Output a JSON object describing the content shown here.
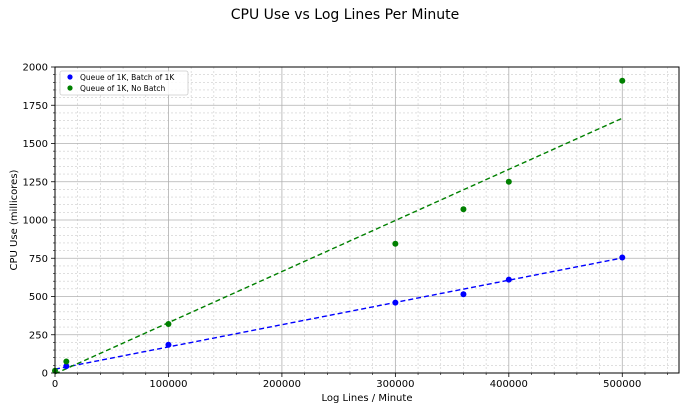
{
  "chart_data": {
    "type": "scatter",
    "title": "CPU Use vs Log Lines Per Minute",
    "xlabel": "Log Lines / Minute",
    "ylabel": "CPU Use (millicores)",
    "xlim": [
      0,
      550000
    ],
    "ylim": [
      0,
      2000
    ],
    "xticks": [
      0,
      100000,
      200000,
      300000,
      400000,
      500000
    ],
    "yticks": [
      0,
      250,
      500,
      750,
      1000,
      1250,
      1500,
      1750,
      2000
    ],
    "grid": true,
    "minor_grid": true,
    "legend_position": "top-left",
    "series": [
      {
        "name": "Queue of 1K, Batch of 1K",
        "color": "#0000ff",
        "x": [
          10000,
          100000,
          300000,
          360000,
          400000,
          500000
        ],
        "y": [
          45,
          185,
          460,
          515,
          610,
          755
        ],
        "fit": {
          "x": [
            0,
            500000
          ],
          "y": [
            25,
            752
          ],
          "style": "dashed"
        }
      },
      {
        "name": "Queue of 1K, No Batch",
        "color": "#008000",
        "x": [
          0,
          10000,
          100000,
          300000,
          360000,
          400000,
          500000
        ],
        "y": [
          15,
          75,
          320,
          845,
          1070,
          1250,
          1910
        ],
        "fit": {
          "x": [
            0,
            500000
          ],
          "y": [
            -5,
            1665
          ],
          "style": "dashed"
        }
      }
    ]
  }
}
